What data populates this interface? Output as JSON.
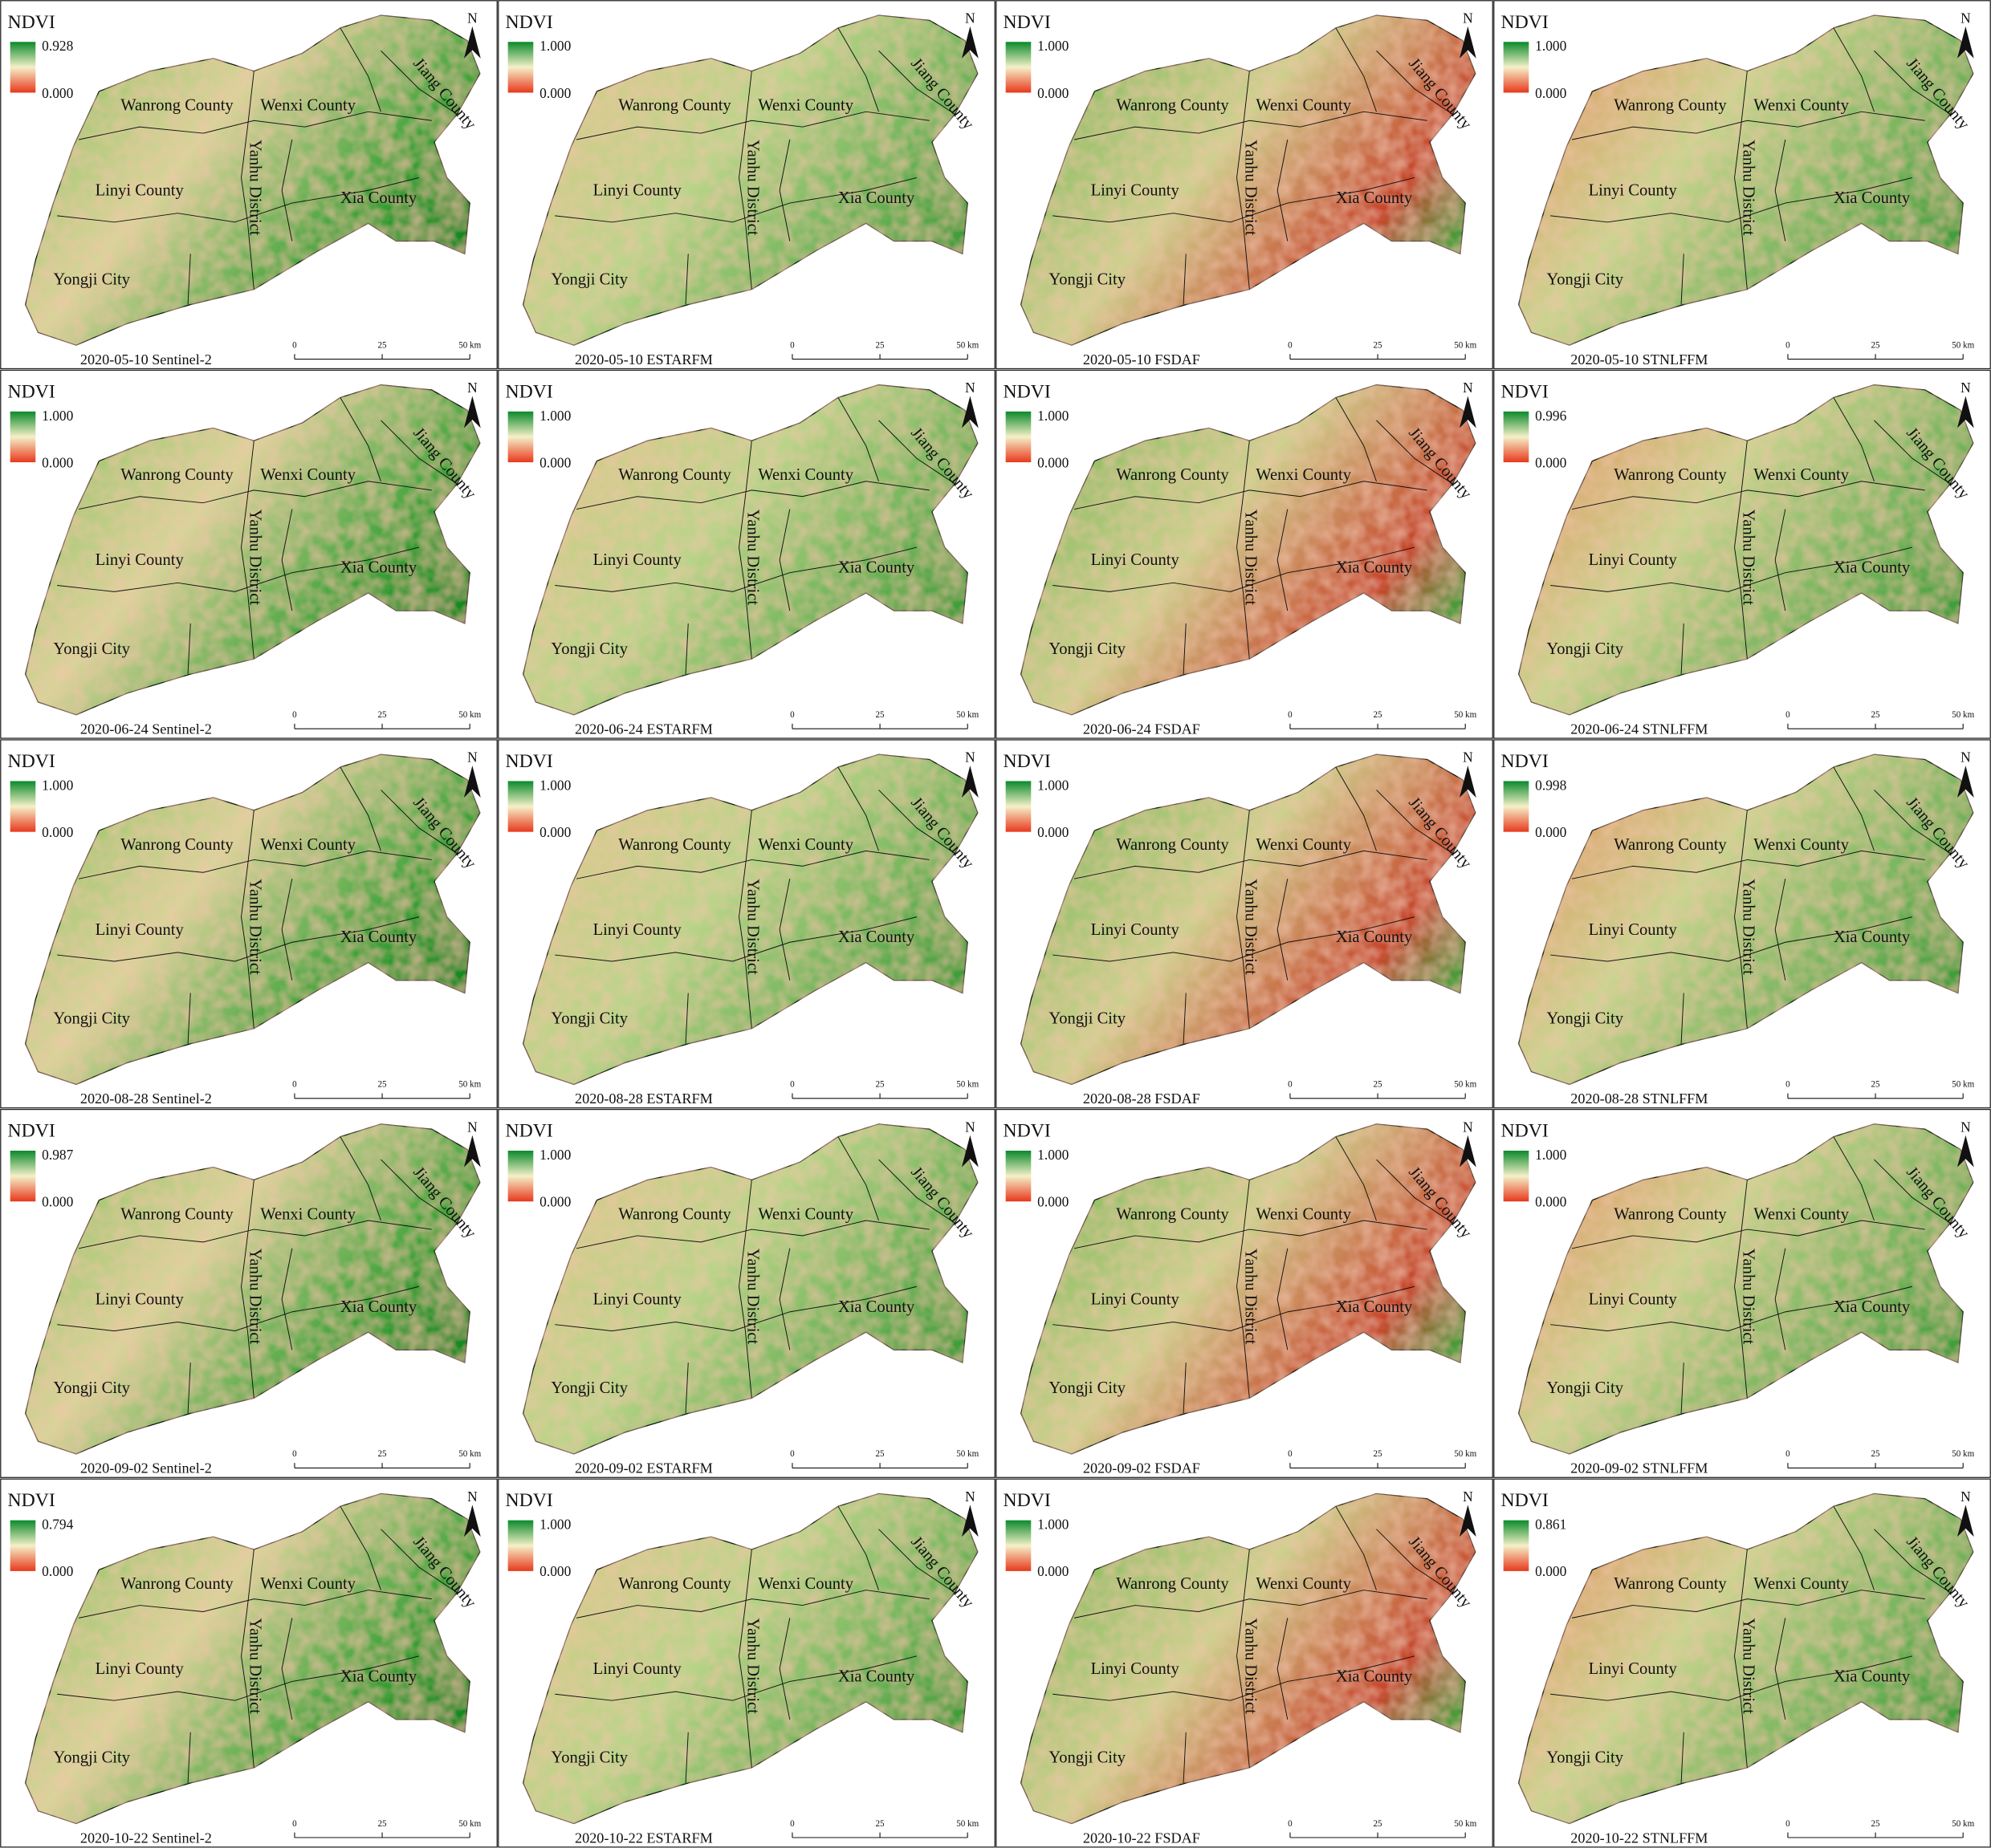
{
  "legend_title": "NDVI",
  "legend_min": "0.000",
  "north": "N",
  "scale_labels": [
    "0",
    "25",
    "50 km"
  ],
  "county_labels": [
    "Wanrong County",
    "Wenxi County",
    "Jiang County",
    "Linyi County",
    "Yanhu District",
    "Xia County",
    "Yongji City"
  ],
  "panels": [
    {
      "caption": "2020-05-10 Sentinel-2",
      "legend_max": "0.928"
    },
    {
      "caption": "2020-05-10 ESTARFM",
      "legend_max": "1.000"
    },
    {
      "caption": "2020-05-10 FSDAF",
      "legend_max": "1.000"
    },
    {
      "caption": "2020-05-10 STNLFFM",
      "legend_max": "1.000"
    },
    {
      "caption": "2020-06-24 Sentinel-2",
      "legend_max": "1.000"
    },
    {
      "caption": "2020-06-24 ESTARFM",
      "legend_max": "1.000"
    },
    {
      "caption": "2020-06-24 FSDAF",
      "legend_max": "1.000"
    },
    {
      "caption": "2020-06-24 STNLFFM",
      "legend_max": "0.996"
    },
    {
      "caption": "2020-08-28 Sentinel-2",
      "legend_max": "1.000"
    },
    {
      "caption": "2020-08-28 ESTARFM",
      "legend_max": "1.000"
    },
    {
      "caption": "2020-08-28 FSDAF",
      "legend_max": "1.000"
    },
    {
      "caption": "2020-08-28 STNLFFM",
      "legend_max": "0.998"
    },
    {
      "caption": "2020-09-02 Sentinel-2",
      "legend_max": "0.987"
    },
    {
      "caption": "2020-09-02 ESTARFM",
      "legend_max": "1.000"
    },
    {
      "caption": "2020-09-02 FSDAF",
      "legend_max": "1.000"
    },
    {
      "caption": "2020-09-02 STNLFFM",
      "legend_max": "1.000"
    },
    {
      "caption": "2020-10-22 Sentinel-2",
      "legend_max": "0.794"
    },
    {
      "caption": "2020-10-22 ESTARFM",
      "legend_max": "1.000"
    },
    {
      "caption": "2020-10-22 FSDAF",
      "legend_max": "1.000"
    },
    {
      "caption": "2020-10-22 STNLFFM",
      "legend_max": "0.861"
    }
  ]
}
